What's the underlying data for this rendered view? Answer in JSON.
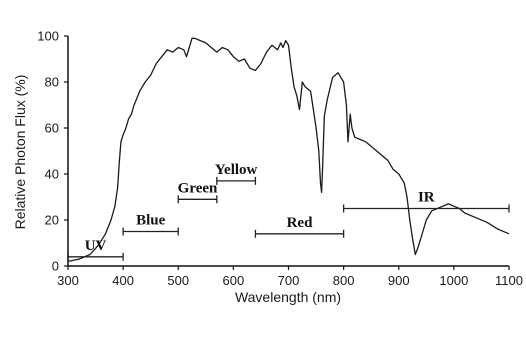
{
  "chart_data": {
    "type": "line",
    "xlabel": "Wavelength (nm)",
    "ylabel": "Relative Photon Flux (%)",
    "xlim": [
      300,
      1100
    ],
    "ylim": [
      0,
      100
    ],
    "x_ticks": [
      "300",
      "400",
      "500",
      "600",
      "700",
      "800",
      "900",
      "1000",
      "1100"
    ],
    "y_ticks": [
      "0",
      "20",
      "40",
      "60",
      "80",
      "100"
    ],
    "grid": false,
    "series": [
      {
        "values_x": [
          300,
          320,
          340,
          355,
          368,
          378,
          385,
          390,
          393,
          396,
          400,
          405,
          410,
          415,
          420,
          425,
          430,
          440,
          450,
          460,
          470,
          480,
          490,
          500,
          510,
          515,
          520,
          525,
          530,
          540,
          550,
          560,
          570,
          580,
          590,
          600,
          610,
          620,
          630,
          640,
          650,
          660,
          670,
          680,
          686,
          690,
          695,
          700,
          705,
          710,
          715,
          720,
          725,
          730,
          740,
          750,
          755,
          758,
          760,
          762,
          765,
          770,
          780,
          790,
          800,
          805,
          808,
          812,
          815,
          820,
          830,
          840,
          850,
          860,
          870,
          880,
          890,
          900,
          910,
          915,
          920,
          925,
          930,
          935,
          940,
          950,
          960,
          970,
          980,
          990,
          1000,
          1010,
          1020,
          1040,
          1060,
          1080,
          1100
        ],
        "values_y": [
          2,
          3,
          5,
          9,
          14,
          20,
          26,
          34,
          45,
          54,
          57,
          60,
          64,
          66,
          70,
          73,
          76,
          80,
          83,
          88,
          91,
          94,
          93,
          95,
          94,
          91,
          95,
          99,
          99,
          98,
          97,
          95,
          93,
          95,
          94,
          91,
          89,
          90,
          86,
          85,
          88,
          93,
          96,
          94,
          97,
          95,
          98,
          96,
          86,
          78,
          74,
          68,
          80,
          78,
          76,
          60,
          50,
          36,
          32,
          44,
          65,
          72,
          82,
          84,
          80,
          70,
          54,
          66,
          60,
          56,
          55,
          54,
          52,
          50,
          48,
          46,
          42,
          40,
          36,
          30,
          20,
          12,
          5,
          8,
          12,
          20,
          24,
          25,
          26,
          27,
          26,
          25,
          23,
          21,
          19,
          16,
          14
        ]
      }
    ],
    "bands": [
      {
        "label": "UV",
        "x": [
          300,
          400
        ],
        "y": 4
      },
      {
        "label": "Blue",
        "x": [
          400,
          500
        ],
        "y": 15
      },
      {
        "label": "Green",
        "x": [
          500,
          570
        ],
        "y": 29
      },
      {
        "label": "Yellow",
        "x": [
          570,
          640
        ],
        "y": 37
      },
      {
        "label": "Red",
        "x": [
          640,
          800
        ],
        "y": 14
      },
      {
        "label": "IR",
        "x": [
          800,
          1100
        ],
        "y": 25
      }
    ]
  }
}
